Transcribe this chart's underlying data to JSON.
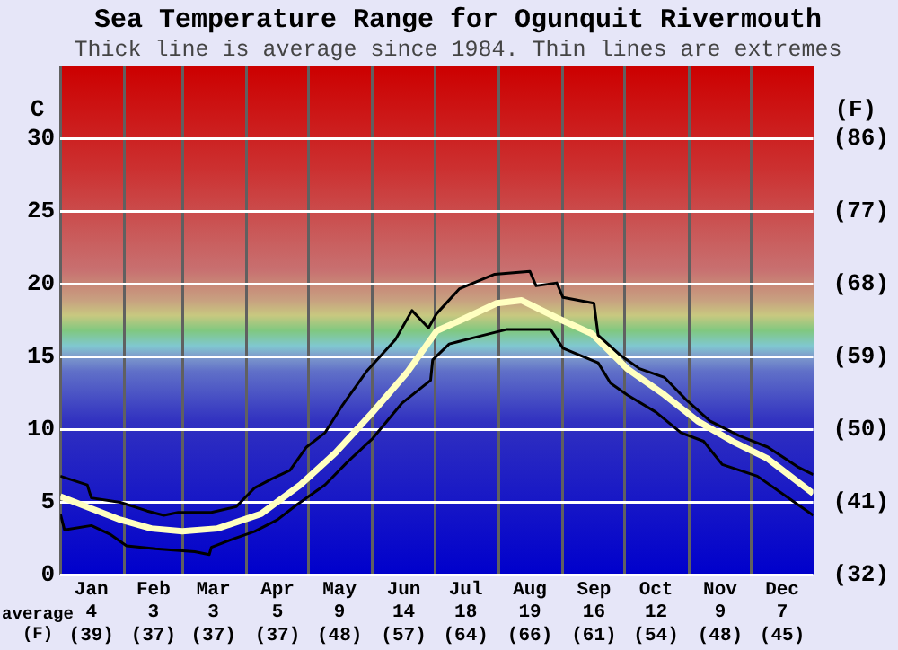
{
  "chart_data": {
    "type": "line",
    "title": "Sea Temperature Range for Ogunquit Rivermouth",
    "subtitle": "Thick line is average since 1984. Thin lines are extremes",
    "ylabel": "C",
    "y2label": "(F)",
    "annotations": [
      "average (F)"
    ],
    "xlim": [
      "--01-01",
      "--12-31"
    ],
    "xticks": [
      {
        "value": "--01-01",
        "label": null
      },
      {
        "value": "--01-16",
        "label": "Jan\n4\n(39)"
      },
      {
        "value": "--02-01",
        "label": null
      },
      {
        "value": "--02-15",
        "label": "Feb\n3\n(37)"
      },
      {
        "value": "--03-01",
        "label": null
      },
      {
        "value": "--03-16",
        "label": "Mar\n3\n(37)"
      },
      {
        "value": "--04-01",
        "label": null
      },
      {
        "value": "--04-16",
        "label": "Apr\n5\n(37)"
      },
      {
        "value": "--05-01",
        "label": null
      },
      {
        "value": "--05-16",
        "label": "May\n9\n(48)"
      },
      {
        "value": "--06-01",
        "label": null
      },
      {
        "value": "--06-16",
        "label": "Jun\n14\n(57)"
      },
      {
        "value": "--07-01",
        "label": null
      },
      {
        "value": "--07-16",
        "label": "Jul\n18\n(64)"
      },
      {
        "value": "--08-01",
        "label": null
      },
      {
        "value": "--08-16",
        "label": "Aug\n19\n(66)"
      },
      {
        "value": "--09-01",
        "label": null
      },
      {
        "value": "--09-16",
        "label": "Sep\n16\n(61)"
      },
      {
        "value": "--10-01",
        "label": null
      },
      {
        "value": "--10-16",
        "label": "Oct\n12\n(54)"
      },
      {
        "value": "--11-01",
        "label": null
      },
      {
        "value": "--11-16",
        "label": "Nov\n9\n(48)"
      },
      {
        "value": "--12-01",
        "label": null
      },
      {
        "value": "--12-16",
        "label": "Dec\n7\n(45)"
      }
    ],
    "ylim": [
      0,
      35
    ],
    "yticks": [
      0,
      5,
      10,
      15,
      20,
      25,
      30
    ],
    "y2lim": [
      32,
      95
    ],
    "y2ticks": [
      {
        "value": 32,
        "label": "(32)"
      },
      {
        "value": 41,
        "label": "(41)"
      },
      {
        "value": 50,
        "label": "(50)"
      },
      {
        "value": 59,
        "label": "(59)"
      },
      {
        "value": 68,
        "label": "(68)"
      },
      {
        "value": 77,
        "label": "(77)"
      },
      {
        "value": 86,
        "label": "(86)"
      }
    ],
    "grid": true,
    "legend": false,
    "marker": "none",
    "series": [
      {
        "color": "#000000",
        "x": [
          "--01-01",
          "--01-14",
          "--01-16",
          "--01-30",
          "--02-12",
          "--02-20",
          "--02-27",
          "--03-15",
          "--03-27",
          "--04-05",
          "--04-13",
          "--04-22",
          "--04-30",
          "--05-09",
          "--05-17",
          "--05-29",
          "--06-12",
          "--06-20",
          "--06-28",
          "--07-02",
          "--07-13",
          "--07-30",
          "--08-16",
          "--08-19",
          "--08-29",
          "--09-01",
          "--09-16",
          "--09-18",
          "--09-29",
          "--10-08",
          "--10-20",
          "--10-31",
          "--11-11",
          "--11-25",
          "--12-09",
          "--12-24",
          "--12-31"
        ],
        "values": [
          6.8,
          6.2,
          5.3,
          5.0,
          4.4,
          4.1,
          4.3,
          4.3,
          4.7,
          6.0,
          6.6,
          7.2,
          8.8,
          9.8,
          11.6,
          14.0,
          16.2,
          18.2,
          17.0,
          18.0,
          19.7,
          20.7,
          20.9,
          19.9,
          20.1,
          19.1,
          18.7,
          16.5,
          15.1,
          14.2,
          13.6,
          12.0,
          10.6,
          9.6,
          8.8,
          7.4,
          6.9
        ]
      },
      {
        "color": "#000000",
        "x": [
          "--01-01",
          "--01-03",
          "--01-16",
          "--01-25",
          "--02-02",
          "--02-16",
          "--03-07",
          "--03-14",
          "--03-15",
          "--03-24",
          "--04-05",
          "--04-16",
          "--04-25",
          "--05-09",
          "--05-20",
          "--06-01",
          "--06-15",
          "--06-29",
          "--06-30",
          "--07-08",
          "--07-19",
          "--08-05",
          "--08-26",
          "--09-01",
          "--09-18",
          "--09-24",
          "--10-02",
          "--10-16",
          "--10-28",
          "--11-08",
          "--11-17",
          "--12-04",
          "--12-18",
          "--12-31"
        ],
        "values": [
          4.2,
          3.1,
          3.4,
          2.8,
          2.0,
          1.8,
          1.6,
          1.4,
          1.9,
          2.4,
          3.0,
          3.8,
          4.8,
          6.2,
          7.8,
          9.4,
          11.8,
          13.4,
          14.8,
          15.9,
          16.3,
          16.9,
          16.9,
          15.6,
          14.6,
          13.2,
          12.4,
          11.2,
          9.8,
          9.2,
          7.6,
          6.8,
          5.4,
          4.1
        ]
      },
      {
        "color": "#ffffc0",
        "x": [
          "--01-01",
          "--01-30",
          "--02-14",
          "--03-01",
          "--03-18",
          "--04-08",
          "--04-27",
          "--05-14",
          "--06-01",
          "--06-18",
          "--07-02",
          "--07-13",
          "--07-31",
          "--08-12",
          "--08-29",
          "--09-15",
          "--10-02",
          "--10-20",
          "--11-05",
          "--11-22",
          "--12-09",
          "--12-31"
        ],
        "values": [
          5.4,
          3.8,
          3.2,
          3.0,
          3.2,
          4.2,
          6.2,
          8.4,
          11.2,
          14.0,
          16.8,
          17.5,
          18.7,
          18.9,
          17.7,
          16.6,
          14.2,
          12.4,
          10.6,
          9.2,
          8.0,
          5.6
        ]
      }
    ]
  }
}
